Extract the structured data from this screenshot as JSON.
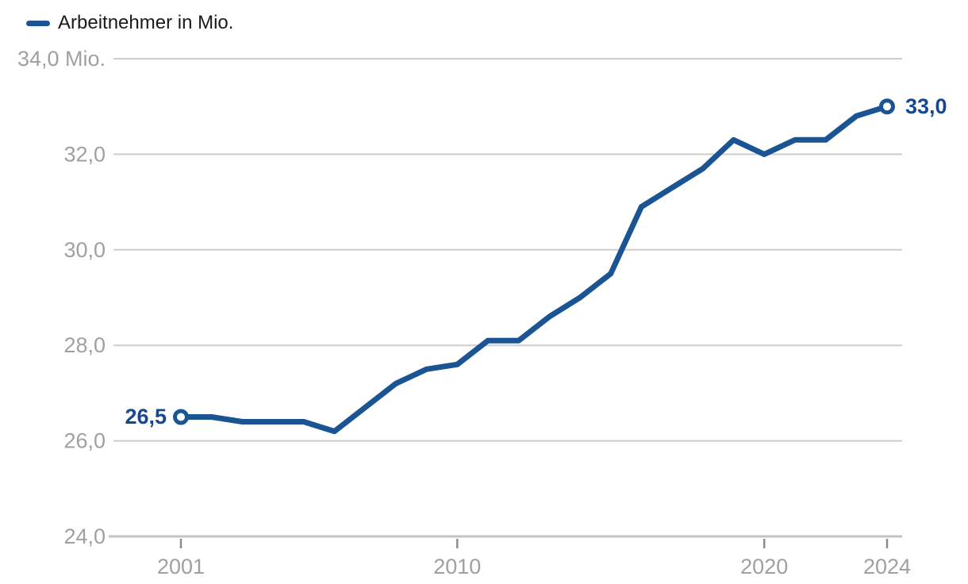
{
  "legend": {
    "label": "Arbeitnehmer in Mio."
  },
  "chart_data": {
    "type": "line",
    "title": "",
    "series_name": "Arbeitnehmer in Mio.",
    "unit": "Mio.",
    "x": [
      2001,
      2002,
      2003,
      2004,
      2005,
      2006,
      2007,
      2008,
      2009,
      2010,
      2011,
      2012,
      2013,
      2014,
      2015,
      2016,
      2017,
      2018,
      2019,
      2020,
      2021,
      2022,
      2023,
      2024
    ],
    "values": [
      26.5,
      26.5,
      26.4,
      26.4,
      26.4,
      26.2,
      26.7,
      27.2,
      27.5,
      27.6,
      28.1,
      28.1,
      28.6,
      29.0,
      29.5,
      30.9,
      31.3,
      31.7,
      32.3,
      32.0,
      32.3,
      32.3,
      32.8,
      33.0
    ],
    "ylim": [
      24.0,
      34.0
    ],
    "yticks": [
      34,
      32,
      30,
      28,
      26,
      24
    ],
    "ytick_labels": [
      "34,0 Mio.",
      "32,0",
      "30,0",
      "28,0",
      "26,0",
      "24,0"
    ],
    "xtick_years": [
      2001,
      2010,
      2020,
      2024
    ],
    "xtick_labels": [
      "2001",
      "2010",
      "2020",
      "2024"
    ],
    "point_labels": {
      "first": "26,5",
      "last": "33,0"
    },
    "grid": true,
    "legend_position": "top-left",
    "colors": {
      "line": "#1A5493",
      "point_label": "#15498C",
      "marker_fill": "#FFFFFF",
      "axis_text": "#A0A0A0",
      "gridline": "#CDCDCD",
      "axis_line": "#C4C4C4",
      "tick": "#8C8C8C",
      "legend_text": "#1A1A1A"
    }
  }
}
